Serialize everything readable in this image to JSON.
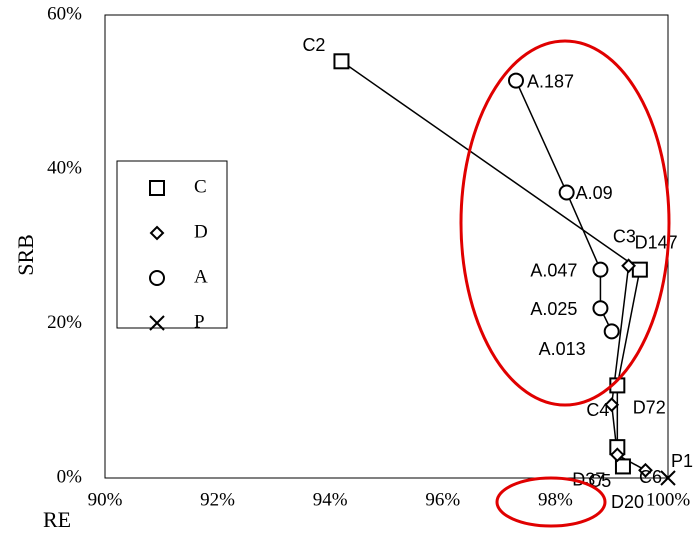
{
  "chart_data": {
    "type": "scatter",
    "xlabel": "RE",
    "ylabel": "SRB",
    "xlim": [
      90,
      100
    ],
    "ylim": [
      0,
      60
    ],
    "x_ticks": [
      "90%",
      "92%",
      "94%",
      "96%",
      "98%",
      "100%"
    ],
    "y_ticks": [
      "0%",
      "20%",
      "40%",
      "60%"
    ],
    "x_tick_values": [
      90,
      92,
      94,
      96,
      98,
      100
    ],
    "y_tick_values": [
      0,
      20,
      40,
      60
    ],
    "grid": false,
    "legend_position": "left",
    "series": [
      {
        "name": "C",
        "marker": "square",
        "connected": true,
        "points": [
          {
            "label": "C2",
            "x": 94.2,
            "y": 54.0
          },
          {
            "label": "C3",
            "x": 99.5,
            "y": 27.0
          },
          {
            "label": "C4",
            "x": 99.1,
            "y": 12.0
          },
          {
            "label": "C5",
            "x": 99.1,
            "y": 4.0
          },
          {
            "label": "C6",
            "x": 99.2,
            "y": 1.5
          }
        ]
      },
      {
        "name": "D",
        "marker": "diamond",
        "connected": true,
        "points": [
          {
            "label": "D147",
            "x": 99.3,
            "y": 27.5
          },
          {
            "label": "D72",
            "x": 99.0,
            "y": 9.5
          },
          {
            "label": "D37",
            "x": 99.1,
            "y": 3.0
          },
          {
            "label": "D20",
            "x": 99.6,
            "y": 1.0
          }
        ]
      },
      {
        "name": "A",
        "marker": "circle",
        "connected": true,
        "points": [
          {
            "label": "A.187",
            "x": 97.3,
            "y": 51.5
          },
          {
            "label": "A.09",
            "x": 98.2,
            "y": 37.0
          },
          {
            "label": "A.047",
            "x": 98.8,
            "y": 27.0
          },
          {
            "label": "A.025",
            "x": 98.8,
            "y": 22.0
          },
          {
            "label": "A.013",
            "x": 99.0,
            "y": 19.0
          }
        ]
      },
      {
        "name": "P",
        "marker": "cross",
        "connected": false,
        "points": [
          {
            "label": "P1",
            "x": 100.0,
            "y": 0.0
          }
        ]
      }
    ],
    "annotations": [
      {
        "type": "ellipse",
        "color": "#e00000",
        "around": "upper cluster (A series, C3, D147)"
      },
      {
        "type": "ellipse",
        "color": "#e00000",
        "around": "98% tick label"
      }
    ]
  }
}
